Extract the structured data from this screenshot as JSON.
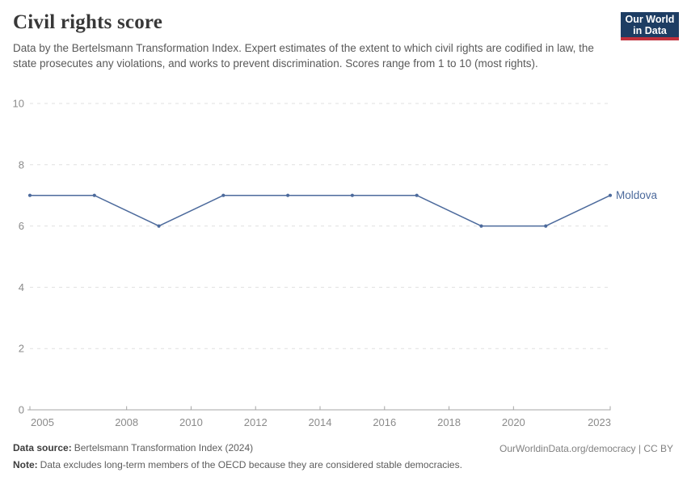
{
  "header": {
    "title": "Civil rights score",
    "subtitle": "Data by the Bertelsmann Transformation Index. Expert estimates of the extent to which civil rights are codified in law, the state prosecutes any violations, and works to prevent discrimination. Scores range from 1 to 10 (most rights).",
    "logo": {
      "line1": "Our World",
      "line2": "in Data"
    }
  },
  "chart_data": {
    "type": "line",
    "title": "Civil rights score",
    "x": [
      2005,
      2007,
      2009,
      2011,
      2013,
      2015,
      2017,
      2019,
      2021,
      2023
    ],
    "series": [
      {
        "name": "Moldova",
        "values": [
          7,
          7,
          6,
          7,
          7,
          7,
          7,
          6,
          6,
          7
        ],
        "color": "#4c6a9c"
      }
    ],
    "x_ticks": [
      2005,
      2008,
      2010,
      2012,
      2014,
      2016,
      2018,
      2020,
      2023
    ],
    "y_ticks": [
      0,
      2,
      4,
      6,
      8,
      10
    ],
    "xlim": [
      2005,
      2023
    ],
    "ylim": [
      0,
      10
    ],
    "grid": "horizontal-dashed",
    "legend_position": "end-of-line",
    "entity_label": "Moldova"
  },
  "footer": {
    "source_label": "Data source:",
    "source_text": "Bertelsmann Transformation Index (2024)",
    "note_label": "Note:",
    "note_text": "Data excludes long-term members of the OECD because they are considered stable democracies.",
    "link_text": "OurWorldinData.org/democracy | CC BY"
  },
  "colors": {
    "line": "#4c6a9c",
    "grid": "#e0e0e0",
    "axis": "#a5a5a5",
    "tick_label": "#8b8b8b",
    "title": "#383838",
    "subtitle": "#595959",
    "footer_text": "#5d5d5d",
    "footer_label": "#3d3d3d",
    "link": "#818181",
    "logo_bg": "#1d3d63",
    "logo_accent": "#c0303c"
  }
}
